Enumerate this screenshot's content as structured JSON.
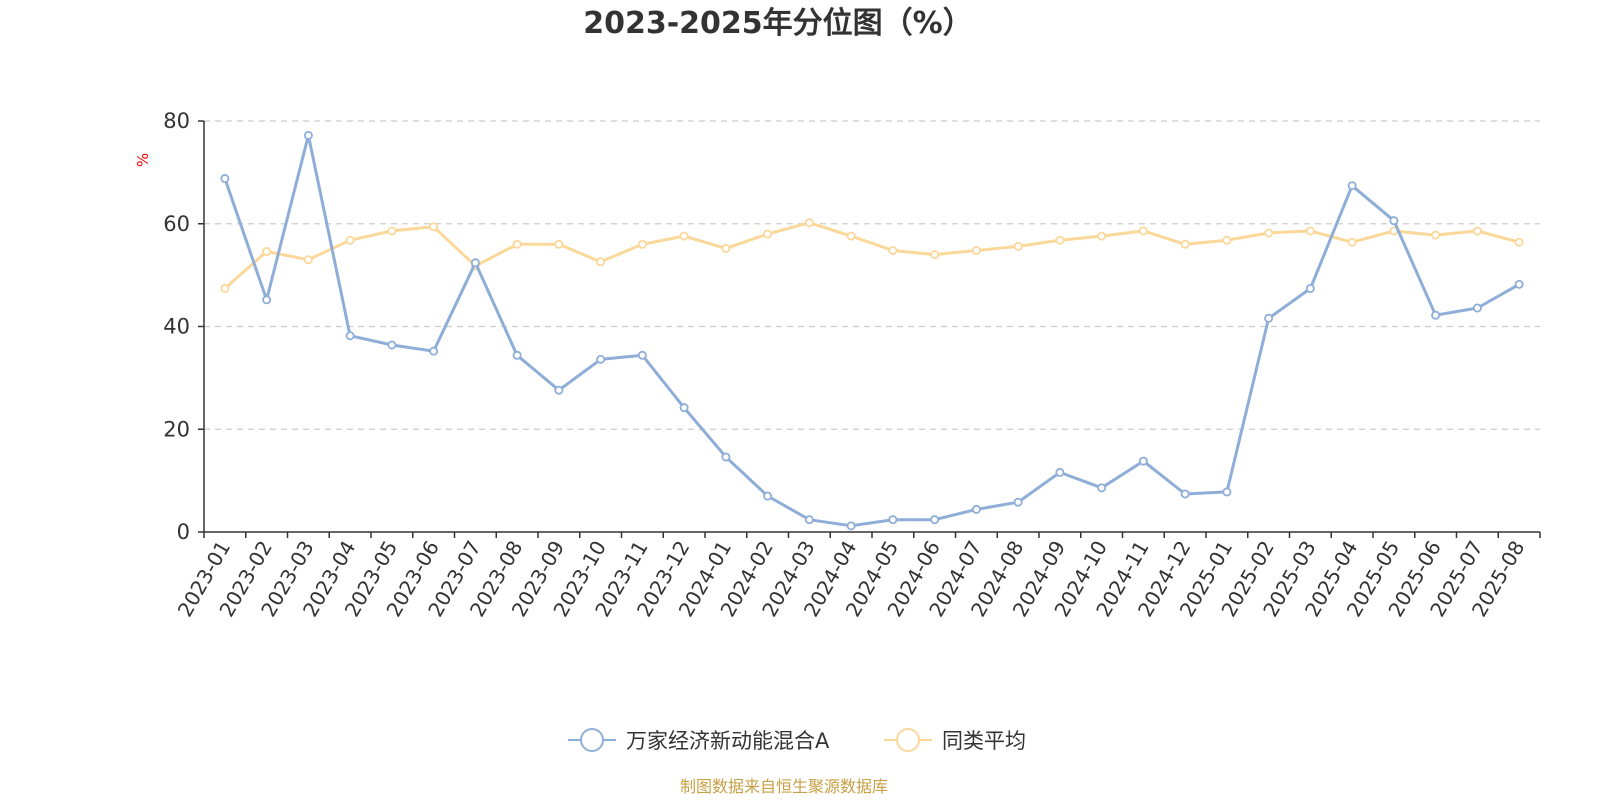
{
  "chart_data": {
    "type": "line",
    "title": "2023-2025年分位图（%）",
    "ylabel": "%",
    "ylim": [
      0,
      80
    ],
    "yticks": [
      "0",
      "20",
      "40",
      "60",
      "80"
    ],
    "grid": true,
    "legend_position": "bottom-center",
    "categories": [
      "2023-01",
      "2023-02",
      "2023-03",
      "2023-04",
      "2023-05",
      "2023-06",
      "2023-07",
      "2023-08",
      "2023-09",
      "2023-10",
      "2023-11",
      "2023-12",
      "2024-01",
      "2024-02",
      "2024-03",
      "2024-04",
      "2024-05",
      "2024-06",
      "2024-07",
      "2024-08",
      "2024-09",
      "2024-10",
      "2024-11",
      "2024-12",
      "2025-01",
      "2025-02",
      "2025-03",
      "2025-04",
      "2025-05",
      "2025-06",
      "2025-07",
      "2025-08"
    ],
    "series": [
      {
        "name": "万家经济新动能混合A",
        "color": "#8eaed8",
        "values": [
          68.8,
          45.2,
          77.2,
          38.2,
          36.4,
          35.2,
          52.4,
          34.4,
          27.6,
          33.6,
          34.4,
          24.2,
          14.6,
          7.0,
          2.4,
          1.2,
          2.4,
          2.4,
          4.4,
          5.8,
          11.6,
          8.6,
          13.8,
          7.4,
          7.8,
          41.6,
          47.4,
          67.4,
          60.6,
          42.2,
          43.6,
          48.2
        ]
      },
      {
        "name": "同类平均",
        "color": "#fbd89a",
        "values": [
          47.4,
          54.6,
          53.0,
          56.8,
          58.6,
          59.4,
          51.8,
          56.0,
          56.0,
          52.6,
          56.0,
          57.6,
          55.2,
          58.0,
          60.2,
          57.6,
          54.8,
          54.0,
          54.8,
          55.6,
          56.8,
          57.6,
          58.6,
          56.0,
          56.8,
          58.2,
          58.6,
          56.4,
          58.6,
          57.8,
          58.6,
          56.4
        ]
      }
    ]
  },
  "colors": {
    "ylabel": "#ff0000",
    "source": "#c8a045",
    "grid": "#cccccc",
    "axis": "#333333"
  },
  "footer": {
    "source_text": "制图数据来自恒生聚源数据库"
  }
}
